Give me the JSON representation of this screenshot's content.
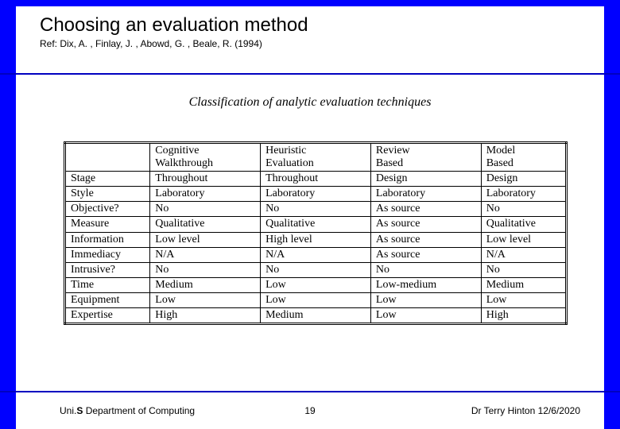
{
  "header": {
    "title": "Choosing an evaluation method",
    "subtitle": "Ref: Dix, A. , Finlay, J. , Abowd, G. , Beale, R. (1994)"
  },
  "caption": "Classification of analytic evaluation techniques",
  "table": {
    "columns": [
      "",
      "Cognitive\nWalkthrough",
      "Heuristic\nEvaluation",
      "Review\nBased",
      "Model\nBased"
    ],
    "rows": [
      [
        "Stage",
        "Throughout",
        "Throughout",
        "Design",
        "Design"
      ],
      [
        "Style",
        "Laboratory",
        "Laboratory",
        "Laboratory",
        "Laboratory"
      ],
      [
        "Objective?",
        "No",
        "No",
        "As source",
        "No"
      ],
      [
        "Measure",
        "Qualitative",
        "Qualitative",
        "As source",
        "Qualitative"
      ],
      [
        "Information",
        "Low level",
        "High level",
        "As source",
        "Low level"
      ],
      [
        "Immediacy",
        "N/A",
        "N/A",
        "As source",
        "N/A"
      ],
      [
        "Intrusive?",
        "No",
        "No",
        "No",
        "No"
      ],
      [
        "Time",
        "Medium",
        "Low",
        "Low-medium",
        "Medium"
      ],
      [
        "Equipment",
        "Low",
        "Low",
        "Low",
        "Low"
      ],
      [
        "Expertise",
        "High",
        "Medium",
        "Low",
        "High"
      ]
    ]
  },
  "footer": {
    "left_bold": "S",
    "left_prefix": "Uni.",
    "left_rest": " Department of Computing",
    "page": "19",
    "right": "Dr Terry Hinton 12/6/2020"
  },
  "style": {
    "background": "#0000ff",
    "rule_color": "#0000c0",
    "text_color": "#000000",
    "table_border": "#000000",
    "caption_font": "Times New Roman italic",
    "body_font": "Arial"
  }
}
